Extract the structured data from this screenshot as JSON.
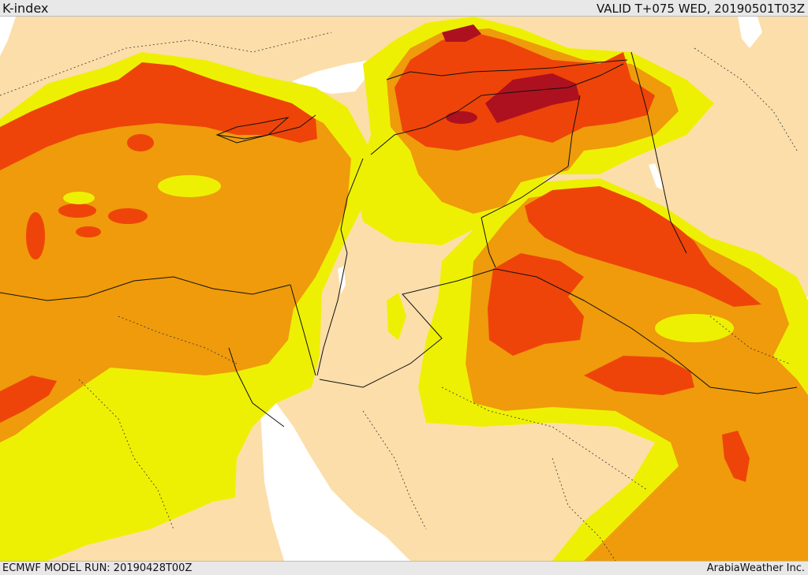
{
  "header": {
    "title": "K-index",
    "valid_time": "VALID T+075 WED, 20190501T03Z"
  },
  "footer": {
    "model_run": "ECMWF MODEL RUN: 20190428T00Z",
    "credit": "ArabiaWeather Inc."
  },
  "map": {
    "colors": {
      "land": "#fcdeaa",
      "water": "#ffffff",
      "yellow": "#eef004",
      "orange": "#ef9b0b",
      "red_orange": "#ee4409",
      "dark_red": "#ad1120",
      "border": "#111111"
    }
  }
}
